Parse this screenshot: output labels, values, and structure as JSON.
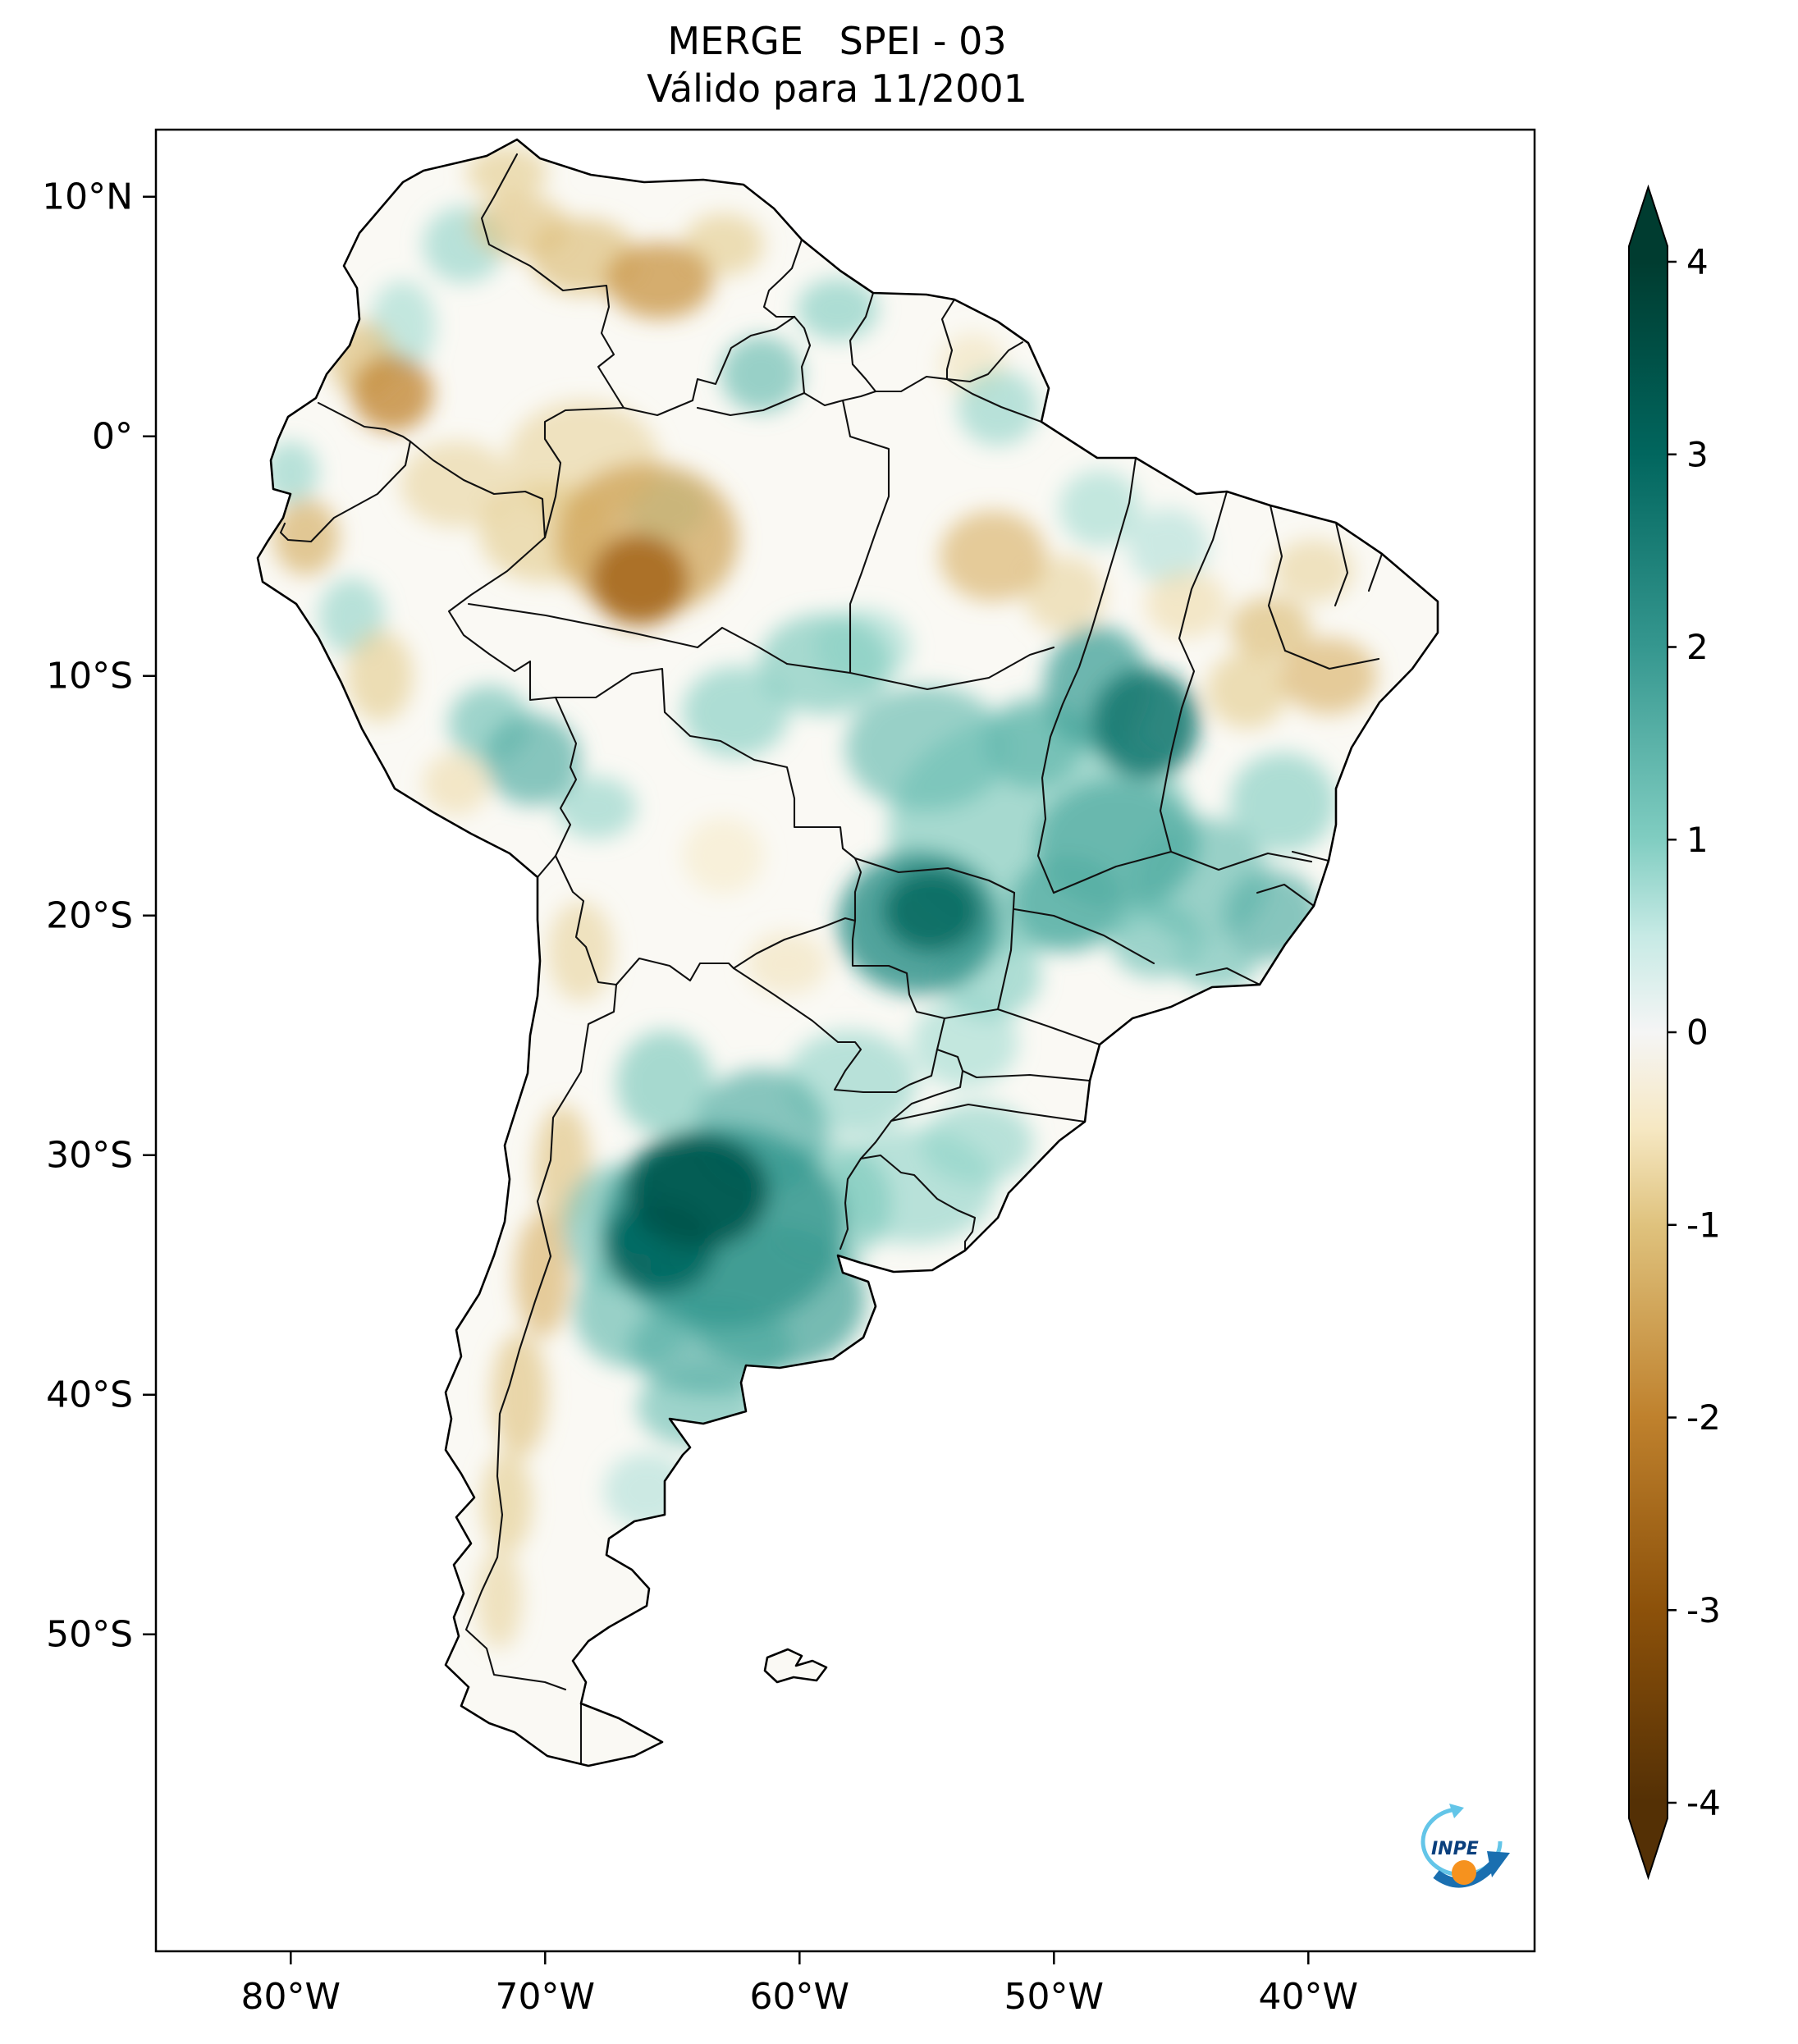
{
  "chart_data": {
    "type": "heatmap",
    "title": "MERGE   SPEI - 03",
    "subtitle": "Válido para 11/2001",
    "product": "MERGE",
    "index": "SPEI-03",
    "valid_for": "11/2001",
    "region": "South America",
    "x_axis": {
      "ticks": [
        {
          "label": "80°W",
          "lon": -80
        },
        {
          "label": "70°W",
          "lon": -70
        },
        {
          "label": "60°W",
          "lon": -60
        },
        {
          "label": "50°W",
          "lon": -50
        },
        {
          "label": "40°W",
          "lon": -40
        }
      ]
    },
    "y_axis": {
      "ticks": [
        {
          "label": "10°N",
          "lat": 10
        },
        {
          "label": "0°",
          "lat": 0
        },
        {
          "label": "10°S",
          "lat": -10
        },
        {
          "label": "20°S",
          "lat": -20
        },
        {
          "label": "30°S",
          "lat": -30
        },
        {
          "label": "40°S",
          "lat": -40
        },
        {
          "label": "50°S",
          "lat": -50
        }
      ]
    },
    "lon_range": [
      -85.3,
      -31.1
    ],
    "lat_range": [
      -63.2,
      12.8
    ],
    "grid": false,
    "colorbar": {
      "vmin": -4,
      "vmax": 4,
      "extend": "both",
      "colormap": "BrBG",
      "ticks": [
        {
          "label": "4",
          "value": 4
        },
        {
          "label": "3",
          "value": 3
        },
        {
          "label": "2",
          "value": 2
        },
        {
          "label": "1",
          "value": 1
        },
        {
          "label": "0",
          "value": 0
        },
        {
          "label": "-1",
          "value": -1
        },
        {
          "label": "-2",
          "value": -2
        },
        {
          "label": "-3",
          "value": -3
        },
        {
          "label": "-4",
          "value": -4
        }
      ],
      "stops": [
        {
          "value": 4,
          "color": "#003c30"
        },
        {
          "value": 3,
          "color": "#01665e"
        },
        {
          "value": 2,
          "color": "#35978f"
        },
        {
          "value": 1,
          "color": "#80cdc1"
        },
        {
          "value": 0.5,
          "color": "#c7eae5"
        },
        {
          "value": 0,
          "color": "#f5f5f5"
        },
        {
          "value": -0.5,
          "color": "#f6e8c3"
        },
        {
          "value": -1,
          "color": "#dfc27d"
        },
        {
          "value": -2,
          "color": "#bf812d"
        },
        {
          "value": -3,
          "color": "#8c510a"
        },
        {
          "value": -4,
          "color": "#543005"
        }
      ]
    },
    "anomalies": [
      {
        "lon": -63,
        "lat": -33,
        "rx": 4.8,
        "ry": 4.2,
        "spei": 2.0
      },
      {
        "lon": -64,
        "lat": -31.5,
        "rx": 2.8,
        "ry": 2.4,
        "spei": 3.4
      },
      {
        "lon": -65.5,
        "lat": -33.8,
        "rx": 2.2,
        "ry": 2,
        "spei": 3.0
      },
      {
        "lon": -61,
        "lat": -36,
        "rx": 3.6,
        "ry": 3,
        "spei": 1.7
      },
      {
        "lon": -63.5,
        "lat": -38,
        "rx": 3.2,
        "ry": 2,
        "spei": 1.5
      },
      {
        "lon": -66.5,
        "lat": -36.5,
        "rx": 2.4,
        "ry": 2.4,
        "spei": 1.3
      },
      {
        "lon": -67.3,
        "lat": -33,
        "rx": 2,
        "ry": 2.6,
        "spei": 1.2
      },
      {
        "lon": -61.5,
        "lat": -29,
        "rx": 2.6,
        "ry": 2.6,
        "spei": 1.5
      },
      {
        "lon": -59,
        "lat": -32,
        "rx": 2.6,
        "ry": 2.6,
        "spei": 1.1
      },
      {
        "lon": -55.5,
        "lat": -31.3,
        "rx": 3.2,
        "ry": 2.4,
        "spei": 0.9
      },
      {
        "lon": -53,
        "lat": -29.5,
        "rx": 2.2,
        "ry": 1.7,
        "spei": 0.9
      },
      {
        "lon": -58,
        "lat": -27,
        "rx": 2.6,
        "ry": 2.2,
        "spei": 0.9
      },
      {
        "lon": -65.3,
        "lat": -27,
        "rx": 1.9,
        "ry": 2.2,
        "spei": 1.1
      },
      {
        "lon": -64,
        "lat": -40.5,
        "rx": 2.4,
        "ry": 1.7,
        "spei": 1.2
      },
      {
        "lon": -66,
        "lat": -44,
        "rx": 1.7,
        "ry": 1.6,
        "spei": 0.7
      },
      {
        "lon": -55.3,
        "lat": -20.3,
        "rx": 3.2,
        "ry": 3,
        "spei": 2.1
      },
      {
        "lon": -54.8,
        "lat": -19.8,
        "rx": 1.9,
        "ry": 1.7,
        "spei": 2.9
      },
      {
        "lon": -50.5,
        "lat": -16.5,
        "rx": 6,
        "ry": 5,
        "spei": 1.1
      },
      {
        "lon": -47.5,
        "lat": -17,
        "rx": 3.2,
        "ry": 2.7,
        "spei": 1.6
      },
      {
        "lon": -46.4,
        "lat": -12,
        "rx": 2.1,
        "ry": 2.3,
        "spei": 2.6
      },
      {
        "lon": -48.3,
        "lat": -10.5,
        "rx": 2.1,
        "ry": 2.6,
        "spei": 1.8
      },
      {
        "lon": -50.8,
        "lat": -12.8,
        "rx": 1.9,
        "ry": 1.9,
        "spei": 1.4
      },
      {
        "lon": -49.5,
        "lat": -19.5,
        "rx": 2.2,
        "ry": 2,
        "spei": 1.6
      },
      {
        "lon": -44.2,
        "lat": -18.5,
        "rx": 2.6,
        "ry": 2.6,
        "spei": 1.3
      },
      {
        "lon": -46,
        "lat": -21,
        "rx": 1.8,
        "ry": 1.6,
        "spei": 1.2
      },
      {
        "lon": -41.4,
        "lat": -20,
        "rx": 1.9,
        "ry": 1.9,
        "spei": 1.5
      },
      {
        "lon": -43.6,
        "lat": -22,
        "rx": 1.6,
        "ry": 1.1,
        "spei": 1.2
      },
      {
        "lon": -41,
        "lat": -15.3,
        "rx": 2.1,
        "ry": 2.1,
        "spei": 1.0
      },
      {
        "lon": -55,
        "lat": -13,
        "rx": 3.2,
        "ry": 2.6,
        "spei": 1.3
      },
      {
        "lon": -59,
        "lat": -9.5,
        "rx": 2.6,
        "ry": 2.1,
        "spei": 1.1
      },
      {
        "lon": -62.5,
        "lat": -11.5,
        "rx": 2.1,
        "ry": 1.9,
        "spei": 1.0
      },
      {
        "lon": -57.5,
        "lat": -8.8,
        "rx": 1.9,
        "ry": 1.6,
        "spei": 0.8
      },
      {
        "lon": -52.5,
        "lat": -22.5,
        "rx": 2,
        "ry": 1.8,
        "spei": 1.0
      },
      {
        "lon": -53.5,
        "lat": -25.3,
        "rx": 2.1,
        "ry": 1.9,
        "spei": 0.8
      },
      {
        "lon": -70.5,
        "lat": -13.5,
        "rx": 1.9,
        "ry": 1.9,
        "spei": 1.5
      },
      {
        "lon": -72.2,
        "lat": -12,
        "rx": 1.6,
        "ry": 1.6,
        "spei": 1.2
      },
      {
        "lon": -68,
        "lat": -15.5,
        "rx": 1.6,
        "ry": 1.3,
        "spei": 0.9
      },
      {
        "lon": -77.6,
        "lat": -7.5,
        "rx": 1.3,
        "ry": 1.6,
        "spei": 0.9
      },
      {
        "lon": -80,
        "lat": -1.5,
        "rx": 1.1,
        "ry": 1.3,
        "spei": 0.9
      },
      {
        "lon": -75.6,
        "lat": 4.6,
        "rx": 1.3,
        "ry": 1.9,
        "spei": 0.8
      },
      {
        "lon": -73.2,
        "lat": 8,
        "rx": 1.6,
        "ry": 1.6,
        "spei": 0.9
      },
      {
        "lon": -61.5,
        "lat": 2.6,
        "rx": 1.6,
        "ry": 1.6,
        "spei": 1.3
      },
      {
        "lon": -58.5,
        "lat": 5.3,
        "rx": 1.6,
        "ry": 1.3,
        "spei": 1.0
      },
      {
        "lon": -52.2,
        "lat": 1.2,
        "rx": 1.6,
        "ry": 1.6,
        "spei": 0.9
      },
      {
        "lon": -48.2,
        "lat": -3,
        "rx": 1.6,
        "ry": 1.6,
        "spei": 0.8
      },
      {
        "lon": -65.2,
        "lat": -3,
        "rx": 1.6,
        "ry": 1.3,
        "spei": 0.8
      },
      {
        "lon": -45.5,
        "lat": -4.6,
        "rx": 1.6,
        "ry": 1.6,
        "spei": 0.7
      },
      {
        "lon": -66.3,
        "lat": -6,
        "rx": 1.9,
        "ry": 1.9,
        "spei": -2.5
      },
      {
        "lon": -66,
        "lat": -4.3,
        "rx": 3.6,
        "ry": 3.2,
        "spei": -1.5
      },
      {
        "lon": -70,
        "lat": -4,
        "rx": 2.6,
        "ry": 2.1,
        "spei": -0.9
      },
      {
        "lon": -68.5,
        "lat": -1,
        "rx": 3,
        "ry": 2.5,
        "spei": -0.8
      },
      {
        "lon": -73.5,
        "lat": -2,
        "rx": 2.2,
        "ry": 1.8,
        "spei": -0.8
      },
      {
        "lon": -76,
        "lat": 1.8,
        "rx": 1.6,
        "ry": 1.6,
        "spei": -1.9
      },
      {
        "lon": -77.2,
        "lat": 3.2,
        "rx": 1.3,
        "ry": 1.6,
        "spei": -1.1
      },
      {
        "lon": -65.5,
        "lat": 6.5,
        "rx": 2.1,
        "ry": 1.6,
        "spei": -1.7
      },
      {
        "lon": -68.5,
        "lat": 7.5,
        "rx": 2.1,
        "ry": 1.6,
        "spei": -1.1
      },
      {
        "lon": -71,
        "lat": 8.8,
        "rx": 1.9,
        "ry": 1.3,
        "spei": -1.0
      },
      {
        "lon": -71.5,
        "lat": 11,
        "rx": 1.6,
        "ry": 1.1,
        "spei": -0.9
      },
      {
        "lon": -63,
        "lat": 8,
        "rx": 1.6,
        "ry": 1.3,
        "spei": -0.9
      },
      {
        "lon": -79.4,
        "lat": -4.2,
        "rx": 1.3,
        "ry": 1.6,
        "spei": -1.3
      },
      {
        "lon": -76.5,
        "lat": -10,
        "rx": 1.3,
        "ry": 1.9,
        "spei": -0.9
      },
      {
        "lon": -73.5,
        "lat": -14.5,
        "rx": 1.3,
        "ry": 1.3,
        "spei": -0.7
      },
      {
        "lon": -52.4,
        "lat": -5,
        "rx": 2.1,
        "ry": 1.9,
        "spei": -1.2
      },
      {
        "lon": -49.6,
        "lat": -6.6,
        "rx": 1.6,
        "ry": 1.6,
        "spei": -0.8
      },
      {
        "lon": -44.8,
        "lat": -7,
        "rx": 1.6,
        "ry": 1.4,
        "spei": -0.7
      },
      {
        "lon": -41.5,
        "lat": -8,
        "rx": 1.6,
        "ry": 1.3,
        "spei": -1.1
      },
      {
        "lon": -39.2,
        "lat": -10,
        "rx": 1.9,
        "ry": 1.6,
        "spei": -1.2
      },
      {
        "lon": -39.8,
        "lat": -5.6,
        "rx": 1.6,
        "ry": 1.3,
        "spei": -0.8
      },
      {
        "lon": -42.4,
        "lat": -10.6,
        "rx": 1.6,
        "ry": 1.6,
        "spei": -0.9
      },
      {
        "lon": -60.5,
        "lat": -22,
        "rx": 1.6,
        "ry": 1.3,
        "spei": -0.6
      },
      {
        "lon": -63,
        "lat": -17.5,
        "rx": 1.6,
        "ry": 1.6,
        "spei": -0.5
      },
      {
        "lon": -68.6,
        "lat": -21.5,
        "rx": 1.3,
        "ry": 2.1,
        "spei": -0.8
      },
      {
        "lon": -69.3,
        "lat": -30.5,
        "rx": 1.1,
        "ry": 2.6,
        "spei": -1.0
      },
      {
        "lon": -70.1,
        "lat": -35,
        "rx": 1.1,
        "ry": 2.6,
        "spei": -1.2
      },
      {
        "lon": -71,
        "lat": -40,
        "rx": 1.1,
        "ry": 2.6,
        "spei": -1.0
      },
      {
        "lon": -71.5,
        "lat": -44.5,
        "rx": 1,
        "ry": 2.1,
        "spei": -0.9
      },
      {
        "lon": -71.8,
        "lat": -48.5,
        "rx": 0.9,
        "ry": 2.1,
        "spei": -0.8
      },
      {
        "lon": -53.2,
        "lat": 3,
        "rx": 1.3,
        "ry": 1.3,
        "spei": -0.6
      }
    ]
  },
  "logo": {
    "label": "INPE"
  }
}
